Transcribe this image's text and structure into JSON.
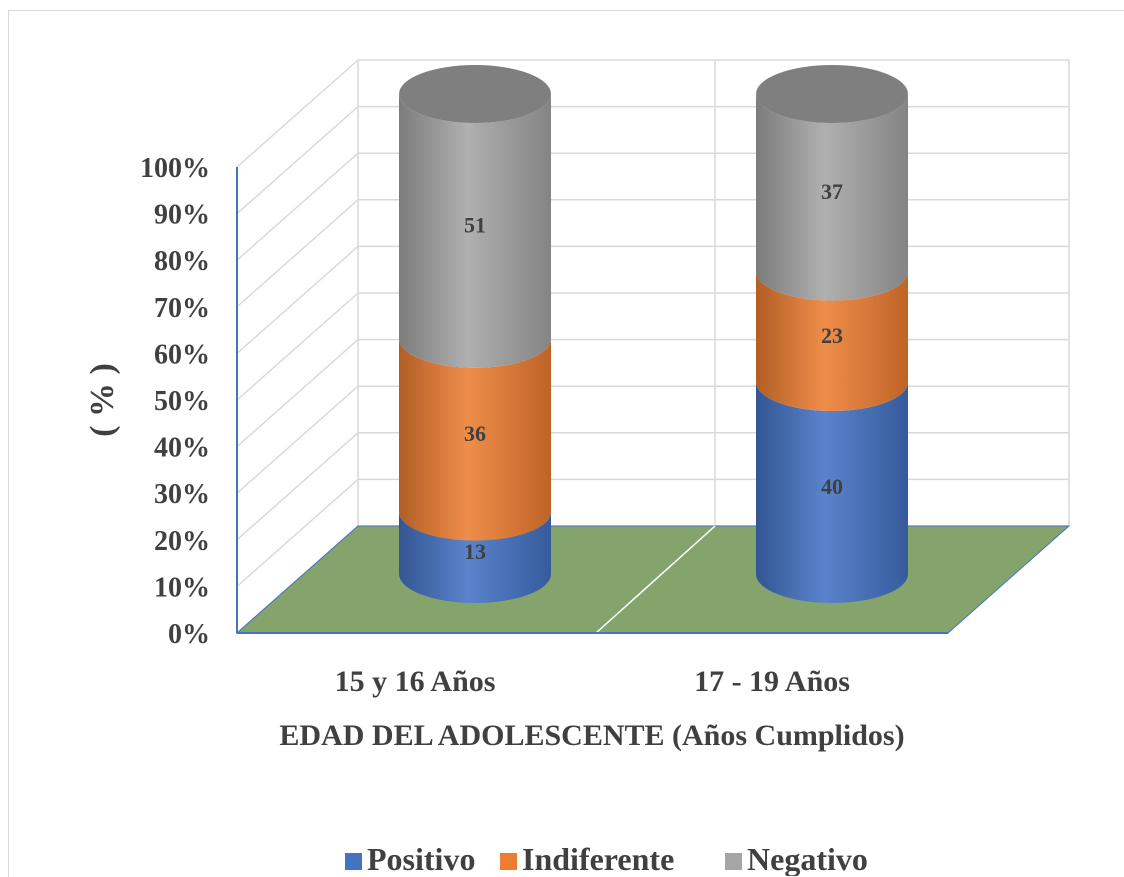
{
  "chart_data": {
    "type": "bar",
    "stacked": true,
    "three_d": true,
    "bar_shape": "cylinder",
    "categories": [
      "15 y 16 Años",
      "17 - 19 Años"
    ],
    "series": [
      {
        "name": "Positivo",
        "values": [
          13,
          40
        ],
        "color": "#4472c4"
      },
      {
        "name": "Indiferente",
        "values": [
          36,
          23
        ],
        "color": "#ed7d31"
      },
      {
        "name": "Negativo",
        "values": [
          51,
          37
        ],
        "color": "#a5a5a5"
      }
    ],
    "xlabel": "EDAD DEL ADOLESCENTE (Años Cumplidos)",
    "ylabel": "( % )",
    "ylim": [
      0,
      100
    ],
    "ytick_labels": [
      "0%",
      "10%",
      "20%",
      "30%",
      "40%",
      "50%",
      "60%",
      "70%",
      "80%",
      "90%",
      "100%"
    ],
    "grid": true,
    "legend_position": "bottom",
    "floor_color": "#84a46c"
  }
}
